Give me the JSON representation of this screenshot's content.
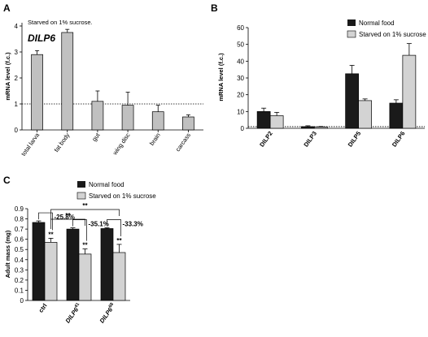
{
  "chart_data": [
    {
      "panel": "A",
      "type": "bar",
      "note": "Starved on 1% sucrose.",
      "gene": "DILP6",
      "ylabel": "mRNA level (f.c.)",
      "ylim": [
        0,
        4
      ],
      "yticks": [
        0,
        1,
        2,
        3,
        4
      ],
      "reference_line": 1,
      "categories": [
        "total larva",
        "fat body",
        "gut",
        "wing disc",
        "brain",
        "carcass"
      ],
      "values": [
        2.9,
        3.75,
        1.1,
        0.95,
        0.7,
        0.5
      ],
      "errors": [
        0.15,
        0.12,
        0.4,
        0.5,
        0.25,
        0.08
      ],
      "color": "#c0c0c0"
    },
    {
      "panel": "B",
      "type": "bar",
      "ylabel": "mRNA level (f.c.)",
      "ylim": [
        0,
        60
      ],
      "yticks": [
        0,
        10,
        20,
        30,
        40,
        50,
        60
      ],
      "reference_line": 1,
      "categories": [
        "DILP2",
        "DILP3",
        "DILP5",
        "DILP6"
      ],
      "series": [
        {
          "name": "Normal food",
          "values": [
            10,
            1,
            32.5,
            15
          ],
          "errors": [
            2,
            0.5,
            5,
            2
          ],
          "color": "#1a1a1a"
        },
        {
          "name": "Starved on 1% sucrose",
          "values": [
            7.5,
            0.8,
            16.5,
            43.5
          ],
          "errors": [
            2,
            0.3,
            1,
            7
          ],
          "color": "#d3d3d3"
        }
      ]
    },
    {
      "panel": "C",
      "type": "bar",
      "ylabel": "Adult mass (mg)",
      "ylim": [
        0,
        0.9
      ],
      "yticks": [
        "0",
        "0.1",
        "0.2",
        "0.3",
        "0.4",
        "0.5",
        "0.6",
        "0.7",
        "0.8",
        "0.9"
      ],
      "categories": [
        {
          "base": "ctrl",
          "sup": ""
        },
        {
          "base": "DILP6",
          "sup": "41"
        },
        {
          "base": "DILP6",
          "sup": "68"
        }
      ],
      "series": [
        {
          "name": "Normal food",
          "values": [
            0.765,
            0.7,
            0.705
          ],
          "errors": [
            0.015,
            0.012,
            0.008
          ],
          "color": "#1a1a1a"
        },
        {
          "name": "Starved on 1% sucrose",
          "values": [
            0.57,
            0.455,
            0.47
          ],
          "errors": [
            0.04,
            0.05,
            0.08
          ],
          "color": "#d3d3d3"
        }
      ],
      "annotations": {
        "percent_changes": [
          "-25.8%",
          "-35.1%",
          "-33.3%"
        ],
        "within_significance": "**",
        "between_significance": "**"
      }
    }
  ]
}
